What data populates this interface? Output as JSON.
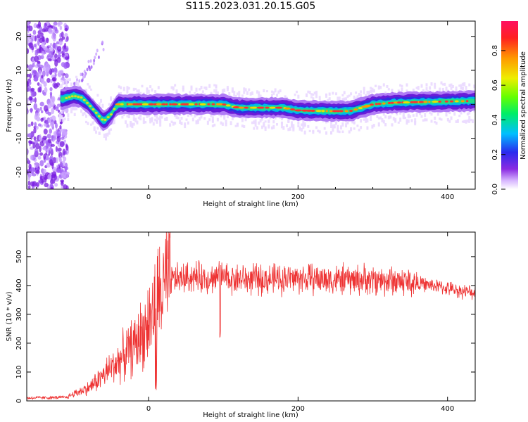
{
  "title": "S115.2023.031.20.15.G05",
  "chart_data": [
    {
      "type": "heatmap",
      "xlabel": "Height of straight line (km)",
      "ylabel": "Frequency (Hz)",
      "xlim": [
        -163,
        437
      ],
      "ylim": [
        -25,
        24.5
      ],
      "xticks": [
        0,
        200,
        400
      ],
      "yticks": [
        -20,
        -10,
        0,
        10,
        20
      ],
      "ridge": [
        {
          "x": -115,
          "y": 1.5
        },
        {
          "x": -100,
          "y": 2.5
        },
        {
          "x": -90,
          "y": 2.0
        },
        {
          "x": -80,
          "y": 0.0
        },
        {
          "x": -70,
          "y": -2.5
        },
        {
          "x": -60,
          "y": -5.0
        },
        {
          "x": -55,
          "y": -4.0
        },
        {
          "x": -50,
          "y": -3.0
        },
        {
          "x": -45,
          "y": -1.0
        },
        {
          "x": -40,
          "y": 0.0
        },
        {
          "x": 0,
          "y": 0.0
        },
        {
          "x": 50,
          "y": 0.0
        },
        {
          "x": 100,
          "y": 0.0
        },
        {
          "x": 120,
          "y": -1.0
        },
        {
          "x": 180,
          "y": -1.0
        },
        {
          "x": 200,
          "y": -1.8
        },
        {
          "x": 240,
          "y": -2.0
        },
        {
          "x": 270,
          "y": -2.0
        },
        {
          "x": 300,
          "y": 0.0
        },
        {
          "x": 330,
          "y": 0.5
        },
        {
          "x": 370,
          "y": 0.7
        },
        {
          "x": 437,
          "y": 1.0
        }
      ],
      "colorbar": {
        "label": "Normalized spectral amplitude",
        "ticks": [
          "0.0",
          "0.2",
          "0.4",
          "0.6",
          "0.8"
        ],
        "range": [
          0,
          0.97
        ]
      },
      "colors": {
        "low": "#e8d5ff",
        "mid_low": "#9b50f5",
        "mid": "#3340e6",
        "high": "#22dd88",
        "peak": "#ff3030"
      }
    },
    {
      "type": "line",
      "xlabel": "Height of straight line (km)",
      "ylabel": "SNR (10 * v/v)",
      "xlim": [
        -163,
        437
      ],
      "ylim": [
        0,
        585
      ],
      "xticks": [
        0,
        200,
        400
      ],
      "yticks": [
        0,
        100,
        200,
        300,
        400,
        500
      ],
      "color": "#ee3333",
      "envelope": [
        {
          "x": -163,
          "y": 10
        },
        {
          "x": -110,
          "y": 12
        },
        {
          "x": -100,
          "y": 25
        },
        {
          "x": -80,
          "y": 45
        },
        {
          "x": -60,
          "y": 90
        },
        {
          "x": -40,
          "y": 140
        },
        {
          "x": -20,
          "y": 190
        },
        {
          "x": 0,
          "y": 270
        },
        {
          "x": 15,
          "y": 370
        },
        {
          "x": 30,
          "y": 420
        },
        {
          "x": 60,
          "y": 430
        },
        {
          "x": 100,
          "y": 425
        },
        {
          "x": 150,
          "y": 420
        },
        {
          "x": 200,
          "y": 425
        },
        {
          "x": 250,
          "y": 420
        },
        {
          "x": 300,
          "y": 420
        },
        {
          "x": 340,
          "y": 415
        },
        {
          "x": 380,
          "y": 400
        },
        {
          "x": 420,
          "y": 380
        },
        {
          "x": 437,
          "y": 375
        }
      ]
    }
  ]
}
